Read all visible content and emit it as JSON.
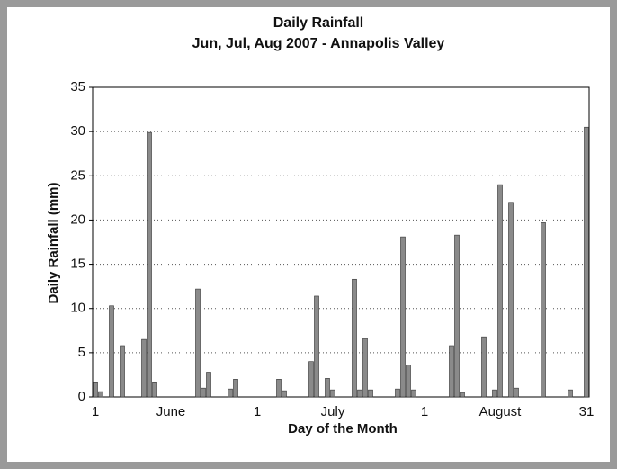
{
  "chart_data": {
    "type": "bar",
    "title": "Daily Rainfall",
    "subtitle": "Jun, Jul, Aug 2007 - Annapolis Valley",
    "x_label": "Day of the Month",
    "y_label": "Daily Rainfall (mm)",
    "categories": [
      "1",
      null,
      null,
      null,
      null,
      null,
      null,
      null,
      null,
      null,
      null,
      null,
      null,
      null,
      "June",
      null,
      null,
      null,
      null,
      null,
      null,
      null,
      null,
      null,
      null,
      null,
      null,
      null,
      null,
      null,
      "1",
      null,
      null,
      null,
      null,
      null,
      null,
      null,
      null,
      null,
      null,
      null,
      null,
      null,
      "July",
      null,
      null,
      null,
      null,
      null,
      null,
      null,
      null,
      null,
      null,
      null,
      null,
      null,
      null,
      null,
      null,
      "1",
      null,
      null,
      null,
      null,
      null,
      null,
      null,
      null,
      null,
      null,
      null,
      null,
      null,
      "August",
      null,
      null,
      null,
      null,
      null,
      null,
      null,
      null,
      null,
      null,
      null,
      null,
      null,
      null,
      null,
      "31"
    ],
    "values": [
      1.7,
      0.6,
      0,
      10.3,
      0,
      5.8,
      0,
      0,
      0,
      6.5,
      29.9,
      1.7,
      0,
      0,
      0,
      0,
      0,
      0,
      0,
      12.2,
      1.0,
      2.8,
      0,
      0,
      0,
      0.9,
      2.0,
      0,
      0,
      0,
      0,
      0,
      0,
      0,
      2.0,
      0.7,
      0,
      0,
      0,
      0,
      4.0,
      11.4,
      0,
      2.1,
      0.8,
      0,
      0,
      0,
      13.3,
      0.8,
      6.6,
      0.8,
      0,
      0,
      0,
      0,
      0.9,
      18.1,
      3.6,
      0.8,
      0,
      0,
      0,
      0,
      0,
      0,
      5.8,
      18.3,
      0.5,
      0,
      0,
      0,
      6.8,
      0,
      0.8,
      24.0,
      0,
      22.0,
      1.0,
      0,
      0,
      0,
      0,
      19.7,
      0,
      0,
      0,
      0,
      0.8,
      0,
      0,
      30.5
    ],
    "color": "#8a8a8a",
    "ylim": [
      0,
      35
    ],
    "yticks": [
      0,
      5,
      10,
      15,
      20,
      25,
      30,
      35
    ],
    "grid": true
  }
}
